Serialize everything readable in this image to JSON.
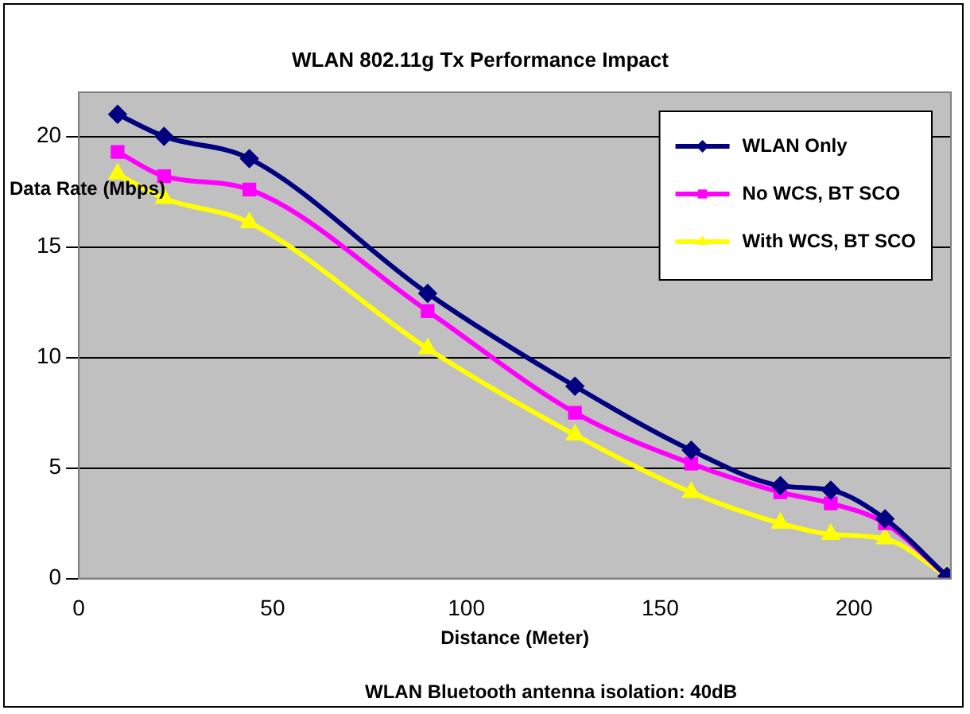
{
  "chart_data": {
    "type": "line",
    "title": "WLAN 802.11g Tx Performance Impact",
    "xlabel": "Distance (Meter)",
    "ylabel": "Data Rate (Mbps)",
    "annotations": [
      "WLAN Bluetooth antenna isolation: 40dB"
    ],
    "x": [
      10,
      22,
      44,
      90,
      128,
      158,
      181,
      194,
      208,
      224
    ],
    "series": [
      {
        "name": "WLAN Only",
        "color": "#000080",
        "marker": "diamond",
        "values": [
          21,
          20,
          19,
          12.9,
          8.7,
          5.8,
          4.2,
          4,
          2.7,
          0.1
        ]
      },
      {
        "name": "No WCS, BT SCO",
        "color": "#ff00ff",
        "marker": "square",
        "values": [
          19.3,
          18.2,
          17.6,
          12.1,
          7.5,
          5.2,
          3.9,
          3.4,
          2.5,
          0.1
        ]
      },
      {
        "name": "With WCS, BT SCO",
        "color": "#ffff00",
        "marker": "triangle",
        "values": [
          18.3,
          17.2,
          16.1,
          10.4,
          6.5,
          3.9,
          2.5,
          2,
          1.8,
          0.1
        ]
      }
    ],
    "xlim": [
      0,
      225
    ],
    "xticks": [
      0,
      50,
      100,
      150,
      200
    ],
    "ylim": [
      0,
      22
    ],
    "yticks": [
      0,
      5,
      10,
      15,
      20
    ],
    "grid": "y",
    "legend": "top right"
  }
}
